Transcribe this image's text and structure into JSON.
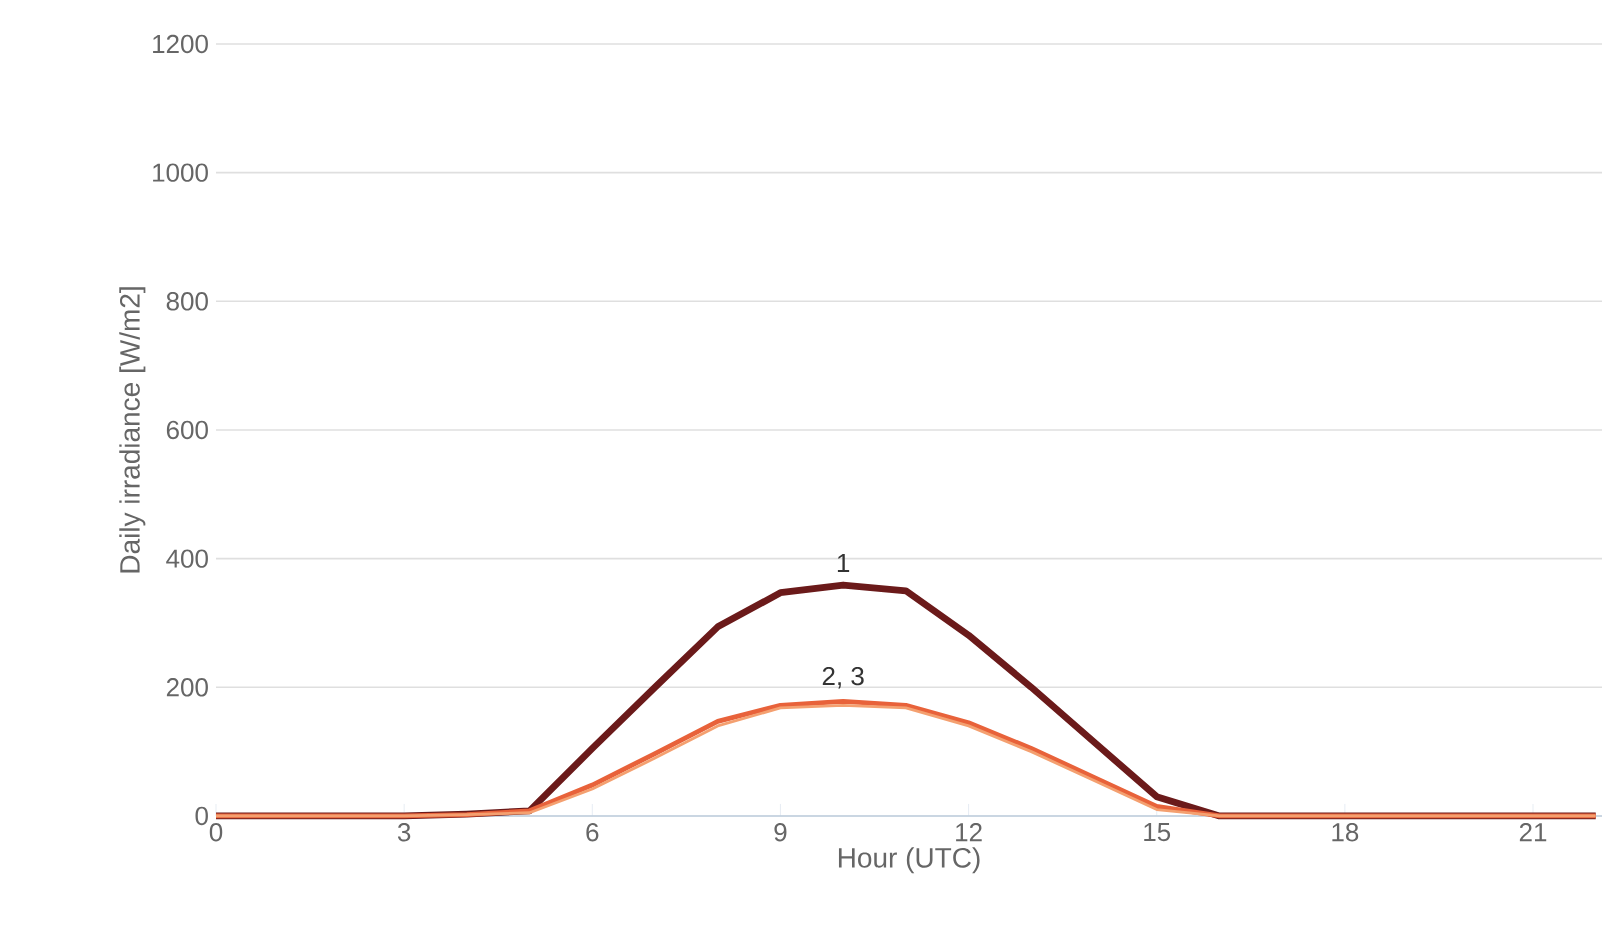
{
  "chart_data": {
    "type": "line",
    "xlabel": "Hour (UTC)",
    "ylabel": "Daily irradiance [W/m2]",
    "x": [
      0,
      1,
      2,
      3,
      4,
      5,
      6,
      7,
      8,
      9,
      10,
      11,
      12,
      13,
      14,
      15,
      16,
      17,
      18,
      19,
      20,
      21,
      22
    ],
    "series": [
      {
        "color": "#6b1a1a",
        "values": [
          0,
          0,
          0,
          0,
          3,
          8,
          105,
          200,
          294,
          347,
          359,
          350,
          281,
          200,
          115,
          30,
          0,
          0,
          0,
          0,
          0,
          0,
          0
        ]
      },
      {
        "color": "#e8623a",
        "values": [
          0,
          0,
          0,
          0,
          2,
          8,
          48,
          97,
          147,
          172,
          178,
          172,
          145,
          105,
          60,
          15,
          0,
          0,
          0,
          0,
          0,
          0,
          0
        ]
      },
      {
        "color": "#f4a070",
        "values": [
          0,
          0,
          0,
          0,
          2,
          5,
          42,
          90,
          140,
          168,
          172,
          168,
          140,
          100,
          55,
          10,
          0,
          0,
          0,
          0,
          0,
          0,
          0
        ]
      }
    ],
    "annotations": [
      "1",
      "2, 3"
    ],
    "xlim": [
      0,
      22.1
    ],
    "ylim": [
      0,
      1200
    ],
    "xticks": [
      0,
      3,
      6,
      9,
      12,
      15,
      18,
      21
    ],
    "yticks": [
      0,
      200,
      400,
      600,
      800,
      1000,
      1200
    ],
    "grid": "y",
    "marker": "none",
    "line_style": "solid"
  }
}
